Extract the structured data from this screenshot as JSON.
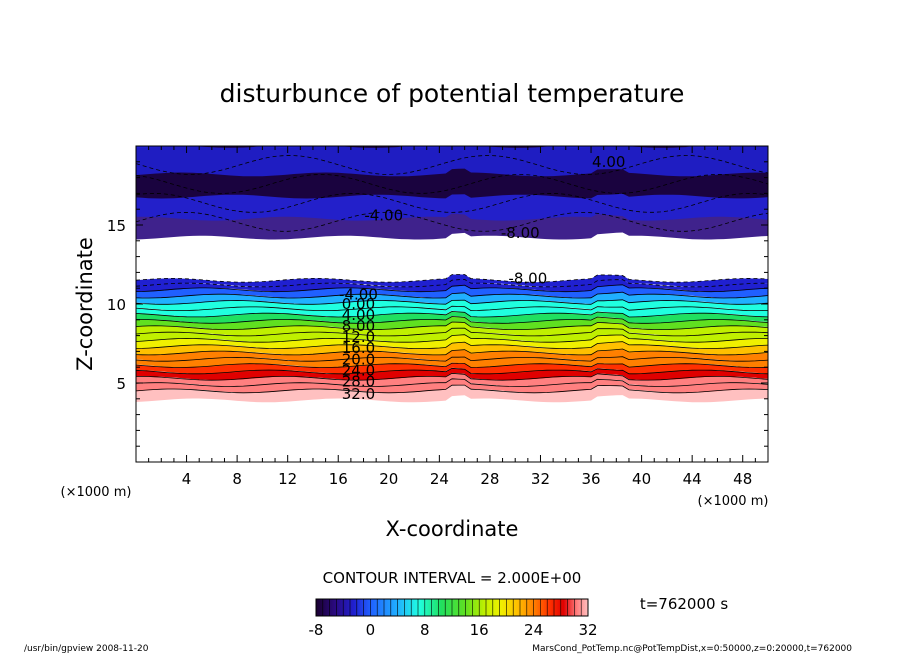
{
  "chart_data": {
    "type": "heatmap",
    "title": "disturbunce of potential temperature",
    "xlabel": "X-coordinate",
    "ylabel": "Z-coordinate",
    "x_unit": "(×1000 m)",
    "y_unit": "(×1000 m)",
    "xlim": [
      0,
      50
    ],
    "ylim": [
      0,
      20
    ],
    "x_ticks": [
      "4",
      "8",
      "12",
      "16",
      "20",
      "24",
      "28",
      "32",
      "36",
      "40",
      "44",
      "48"
    ],
    "y_ticks": [
      "5",
      "10",
      "15"
    ],
    "contour_interval_text": "CONTOUR INTERVAL = 2.000E+00",
    "time_text": "t=762000 s",
    "colorbar_ticks": [
      "-8",
      "0",
      "8",
      "16",
      "24",
      "32"
    ],
    "colorbar_range": [
      -8,
      32
    ],
    "contour_labels": [
      {
        "text": "4.00",
        "x": 37.4,
        "z": 19.0
      },
      {
        "text": "-4.00",
        "x": 19.6,
        "z": 15.6
      },
      {
        "text": "-8.00",
        "x": 30.4,
        "z": 14.5
      },
      {
        "text": "-8.00",
        "x": 31.0,
        "z": 11.6
      },
      {
        "text": "-4.00",
        "x": 17.6,
        "z": 10.6
      },
      {
        "text": "0.00",
        "x": 17.6,
        "z": 10.0
      },
      {
        "text": "4.00",
        "x": 17.6,
        "z": 9.3
      },
      {
        "text": "8.00",
        "x": 17.6,
        "z": 8.6
      },
      {
        "text": "12.0",
        "x": 17.6,
        "z": 7.9
      },
      {
        "text": "16.0",
        "x": 17.6,
        "z": 7.2
      },
      {
        "text": "20.0",
        "x": 17.6,
        "z": 6.5
      },
      {
        "text": "24.0",
        "x": 17.6,
        "z": 5.8
      },
      {
        "text": "28.0",
        "x": 17.6,
        "z": 5.1
      },
      {
        "text": "32.0",
        "x": 17.6,
        "z": 4.3
      }
    ],
    "field_bands": [
      {
        "value": 32,
        "z_bottom": 3.9,
        "z_top": 4.5
      },
      {
        "value": 30,
        "z_bottom": 4.5,
        "z_top": 4.9
      },
      {
        "value": 28,
        "z_bottom": 4.9,
        "z_top": 5.3
      },
      {
        "value": 26,
        "z_bottom": 5.3,
        "z_top": 5.7
      },
      {
        "value": 24,
        "z_bottom": 5.7,
        "z_top": 6.1
      },
      {
        "value": 22,
        "z_bottom": 6.1,
        "z_top": 6.5
      },
      {
        "value": 20,
        "z_bottom": 6.5,
        "z_top": 6.9
      },
      {
        "value": 18,
        "z_bottom": 6.9,
        "z_top": 7.3
      },
      {
        "value": 16,
        "z_bottom": 7.3,
        "z_top": 7.7
      },
      {
        "value": 14,
        "z_bottom": 7.7,
        "z_top": 8.1
      },
      {
        "value": 12,
        "z_bottom": 8.1,
        "z_top": 8.5
      },
      {
        "value": 10,
        "z_bottom": 8.5,
        "z_top": 8.9
      },
      {
        "value": 8,
        "z_bottom": 8.9,
        "z_top": 9.3
      },
      {
        "value": 6,
        "z_bottom": 9.3,
        "z_top": 9.7
      },
      {
        "value": 4,
        "z_bottom": 9.7,
        "z_top": 10.1
      },
      {
        "value": 2,
        "z_bottom": 10.1,
        "z_top": 10.5
      },
      {
        "value": 0,
        "z_bottom": 10.5,
        "z_top": 10.9
      },
      {
        "value": -2,
        "z_bottom": 10.9,
        "z_top": 11.2
      },
      {
        "value": -4,
        "z_bottom": 11.2,
        "z_top": 11.5
      }
    ],
    "upper_region": {
      "z_bottom": 14.0,
      "z_top": 20.0,
      "values": [
        -6,
        -4,
        -8,
        -2
      ]
    },
    "blank_gap": {
      "z_bottom": 11.5,
      "z_top": 14.2
    }
  },
  "footer": {
    "left": "/usr/bin/gpview   2008-11-20",
    "right": "MarsCond_PotTemp.nc@PotTempDist,x=0:50000,z=0:20000,t=762000"
  },
  "colors": {
    "palette": [
      "#1a0030",
      "#2a0a80",
      "#2020d0",
      "#2060ff",
      "#20b0ff",
      "#20ffe0",
      "#20e060",
      "#60e020",
      "#c0f000",
      "#f0f000",
      "#ffc000",
      "#ff8000",
      "#ff3000",
      "#e00000",
      "#ff8080",
      "#ffc0c0"
    ]
  }
}
